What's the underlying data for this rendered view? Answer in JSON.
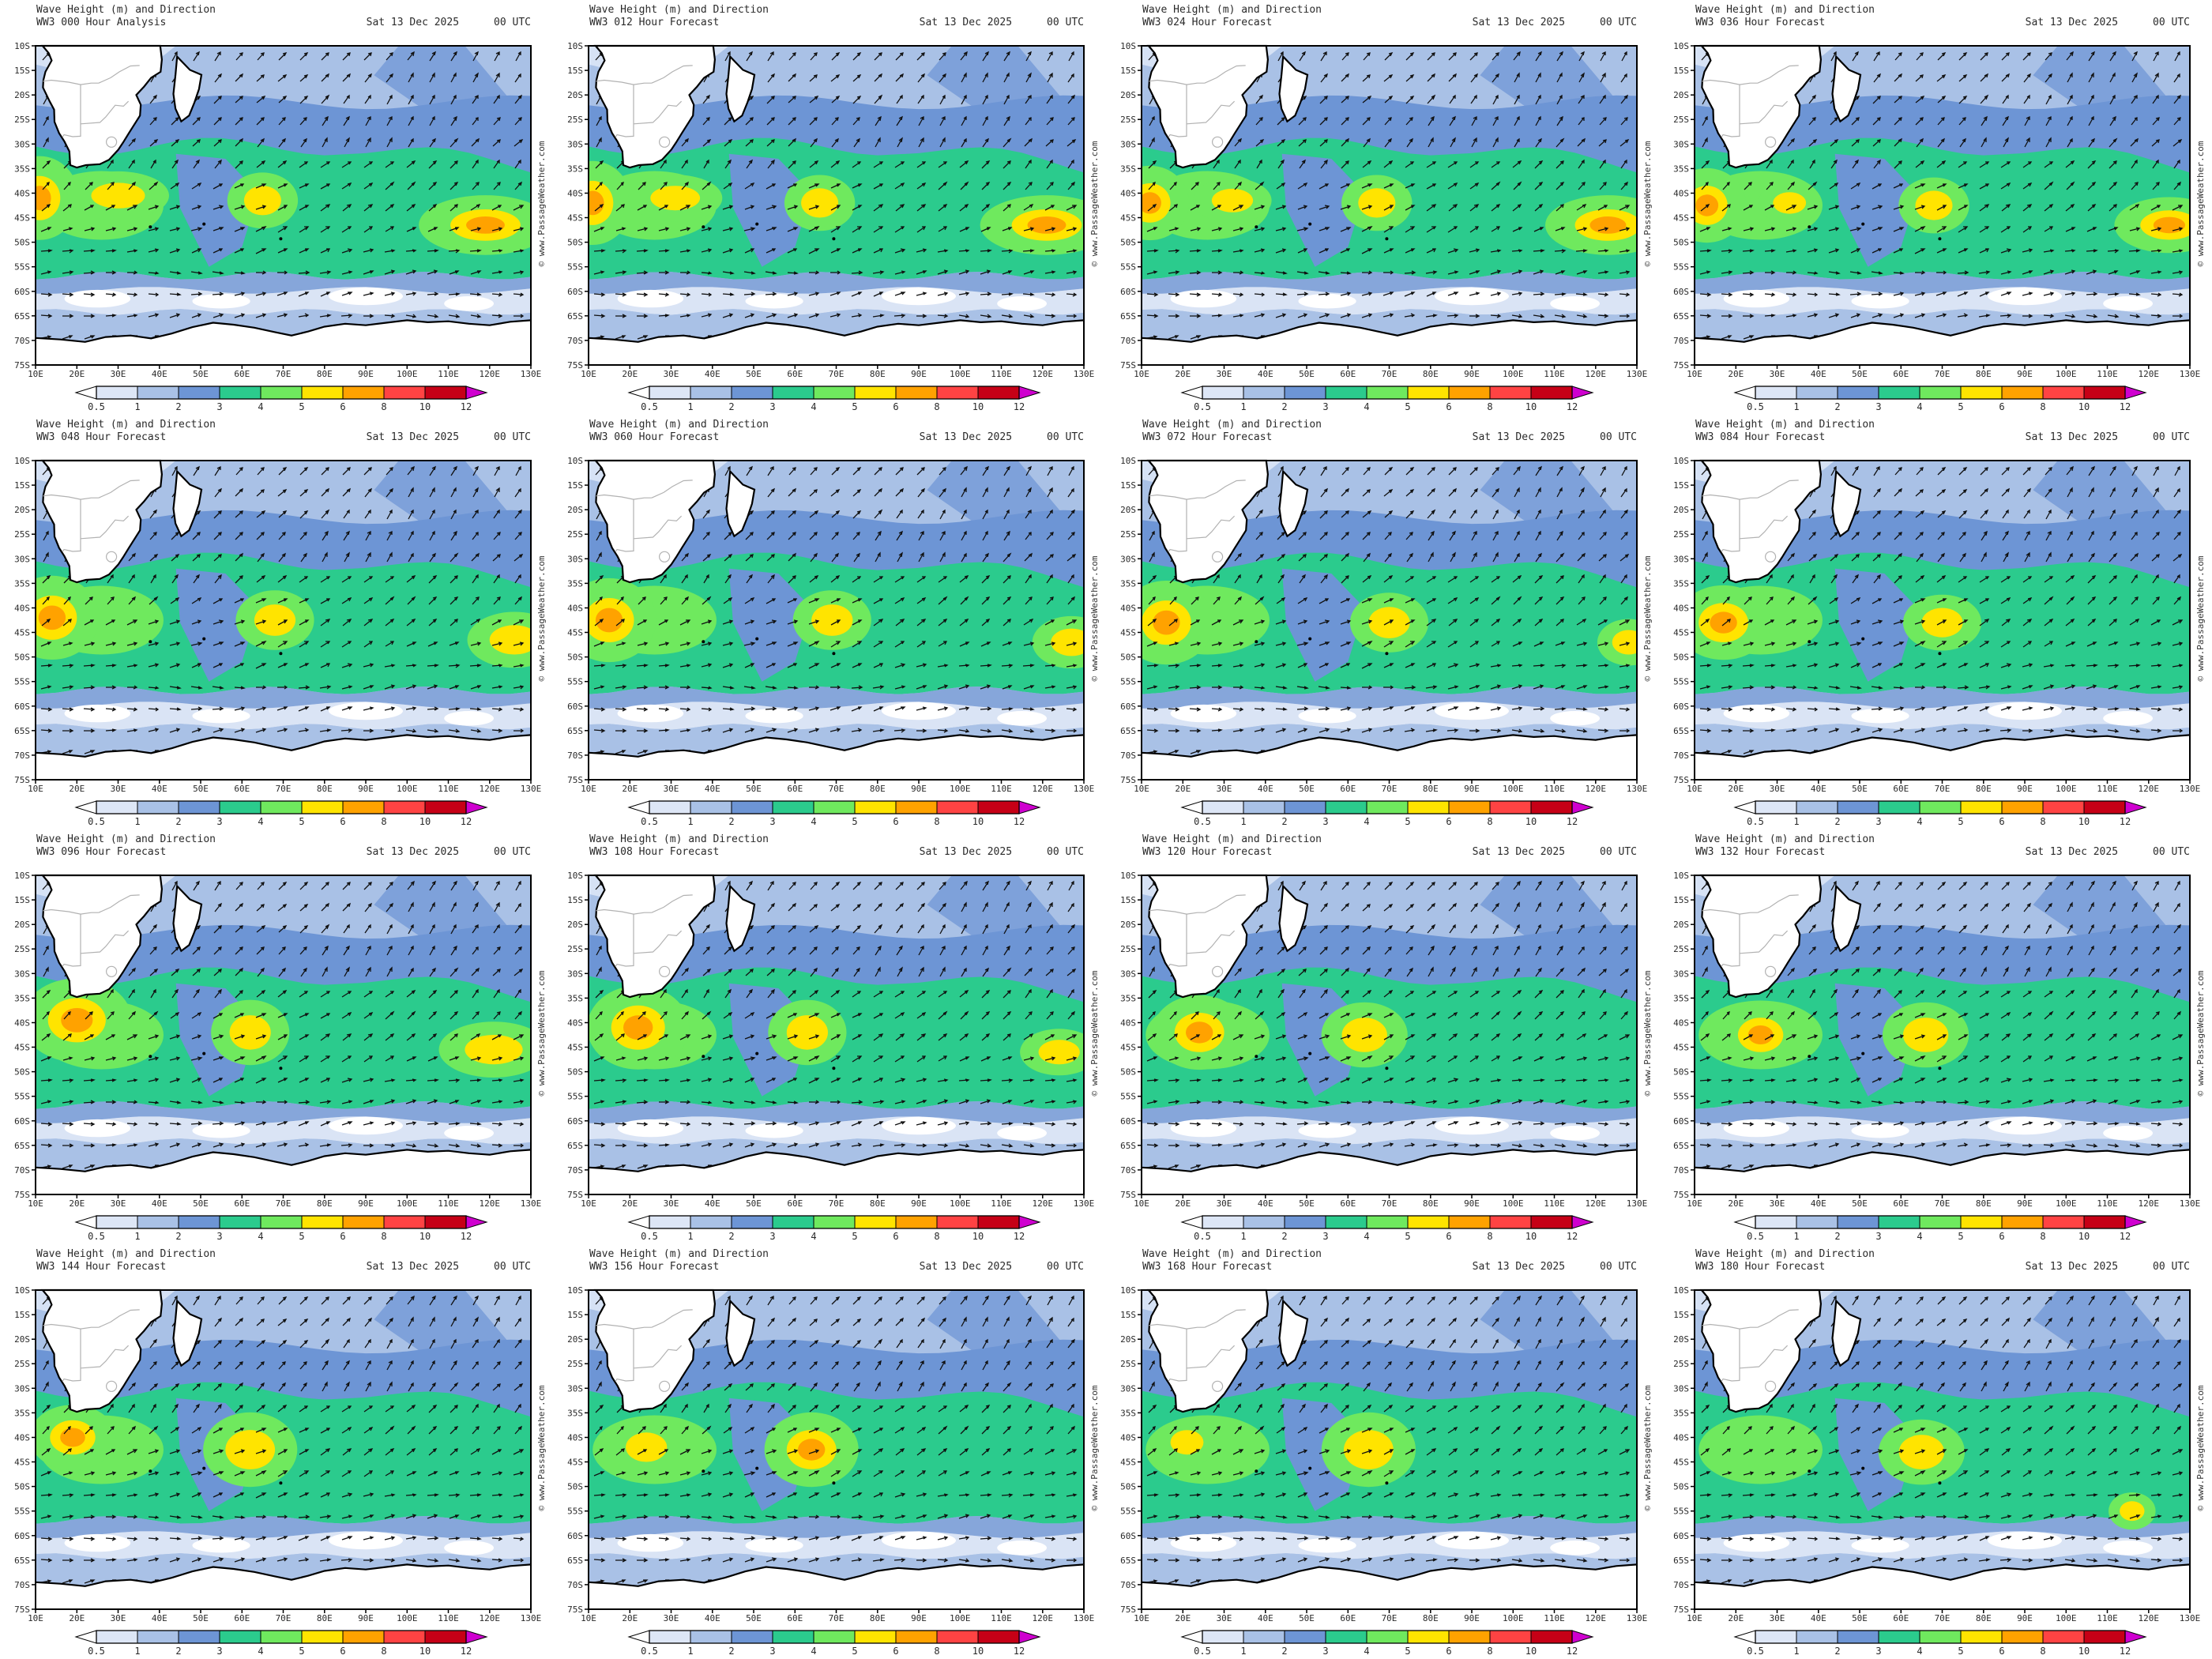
{
  "watermark": "© www.PassageWeather.com",
  "axes": {
    "lat": [
      "10S",
      "15S",
      "20S",
      "25S",
      "30S",
      "35S",
      "40S",
      "45S",
      "50S",
      "55S",
      "60S",
      "65S",
      "70S",
      "75S"
    ],
    "lon": [
      "10E",
      "20E",
      "30E",
      "40E",
      "50E",
      "60E",
      "70E",
      "80E",
      "90E",
      "100E",
      "110E",
      "120E",
      "130E"
    ]
  },
  "colorbar": {
    "labels": [
      "0.5",
      "1",
      "2",
      "3",
      "4",
      "5",
      "6",
      "8",
      "10",
      "12"
    ],
    "colors": [
      "#dde6f6",
      "#a9c1e6",
      "#6d95d5",
      "#2bcb8d",
      "#6fe95e",
      "#ffe400",
      "#ffa200",
      "#ff4343",
      "#c60016"
    ],
    "arrow_left_color": "#ffffff",
    "arrow_right_color": "#cf00cf"
  },
  "map_colors": {
    "sea_base": "#a9c1e6",
    "sea_pale": "#d6e2f5",
    "sea_medium": "#6d95d5",
    "sea_stripe": "#7ea1da",
    "sea_green": "#2bcb8d",
    "sea_bright": "#6fe95e",
    "sea_yellow": "#ffe400",
    "sea_orange": "#ffa200",
    "south_blue": "#86a6da",
    "south_pale": "#dae4f5",
    "ice_white": "#ffffff",
    "land": "#ffffff",
    "coast": "#000000",
    "border": "#b2b2b2",
    "arrow": "#101010"
  },
  "panels": [
    {
      "title": "Wave Height (m) and Direction",
      "run": "WW3 000 Hour Analysis",
      "date": "Sat 13 Dec 2025",
      "time": "00 UTC",
      "storms": [
        [
          11,
          41,
          5,
          4.5,
          "orange"
        ],
        [
          30,
          40.5,
          6.5,
          2.6,
          "yellow"
        ],
        [
          65,
          41.5,
          4.5,
          3,
          "yellow"
        ],
        [
          119,
          46.5,
          8.5,
          3.2,
          "orange"
        ]
      ]
    },
    {
      "title": "Wave Height (m) and Direction",
      "run": "WW3 012 Hour Forecast",
      "date": "Sat 13 Dec 2025",
      "time": "00 UTC",
      "storms": [
        [
          11,
          42,
          5,
          4.5,
          "orange"
        ],
        [
          31,
          41,
          6,
          2.5,
          "yellow"
        ],
        [
          66,
          42,
          4.5,
          3,
          "yellow"
        ],
        [
          121,
          46.5,
          8.5,
          3.2,
          "orange"
        ]
      ]
    },
    {
      "title": "Wave Height (m) and Direction",
      "run": "WW3 024 Hour Forecast",
      "date": "Sat 13 Dec 2025",
      "time": "00 UTC",
      "storms": [
        [
          12,
          42,
          5,
          4,
          "orange"
        ],
        [
          32,
          41.5,
          5,
          2.4,
          "yellow"
        ],
        [
          67,
          42,
          4.5,
          3,
          "yellow"
        ],
        [
          123,
          46.5,
          8,
          3.2,
          "orange"
        ]
      ]
    },
    {
      "title": "Wave Height (m) and Direction",
      "run": "WW3 036 Hour Forecast",
      "date": "Sat 13 Dec 2025",
      "time": "00 UTC",
      "storms": [
        [
          13,
          42.5,
          5,
          4,
          "orange"
        ],
        [
          33,
          42,
          4,
          2.2,
          "yellow"
        ],
        [
          68,
          42.5,
          4.5,
          3,
          "yellow"
        ],
        [
          125,
          46.5,
          7,
          3,
          "orange"
        ]
      ]
    },
    {
      "title": "Wave Height (m) and Direction",
      "run": "WW3 048 Hour Forecast",
      "date": "Sat 13 Dec 2025",
      "time": "00 UTC",
      "storms": [
        [
          14,
          42,
          6,
          4.5,
          "orange"
        ],
        [
          68,
          42.5,
          5,
          3.2,
          "yellow"
        ],
        [
          126,
          46.5,
          6,
          3,
          "yellow"
        ]
      ]
    },
    {
      "title": "Wave Height (m) and Direction",
      "run": "WW3 060 Hour Forecast",
      "date": "Sat 13 Dec 2025",
      "time": "00 UTC",
      "storms": [
        [
          15,
          42.5,
          6,
          4.5,
          "orange"
        ],
        [
          69,
          42.5,
          5,
          3.2,
          "yellow"
        ],
        [
          127,
          47,
          5,
          2.8,
          "yellow"
        ]
      ]
    },
    {
      "title": "Wave Height (m) and Direction",
      "run": "WW3 072 Hour Forecast",
      "date": "Sat 13 Dec 2025",
      "time": "00 UTC",
      "storms": [
        [
          16,
          43,
          6,
          4.5,
          "orange"
        ],
        [
          70,
          43,
          5,
          3.2,
          "yellow"
        ],
        [
          128,
          47,
          4,
          2.5,
          "yellow"
        ]
      ]
    },
    {
      "title": "Wave Height (m) and Direction",
      "run": "WW3 084 Hour Forecast",
      "date": "Sat 13 Dec 2025",
      "time": "00 UTC",
      "storms": [
        [
          17,
          43,
          6,
          4,
          "orange"
        ],
        [
          70,
          43,
          5,
          3,
          "yellow"
        ]
      ]
    },
    {
      "title": "Wave Height (m) and Direction",
      "run": "WW3 096 Hour Forecast",
      "date": "Sat 13 Dec 2025",
      "time": "00 UTC",
      "storms": [
        [
          20,
          39.5,
          7,
          4.5,
          "orange"
        ],
        [
          62,
          42,
          5,
          3.5,
          "yellow"
        ],
        [
          121,
          45.5,
          7,
          3,
          "yellow"
        ]
      ]
    },
    {
      "title": "Wave Height (m) and Direction",
      "run": "WW3 108 Hour Forecast",
      "date": "Sat 13 Dec 2025",
      "time": "00 UTC",
      "storms": [
        [
          22,
          41,
          6.5,
          4.5,
          "orange"
        ],
        [
          63,
          42,
          5,
          3.5,
          "yellow"
        ],
        [
          124,
          46,
          5,
          2.5,
          "yellow"
        ]
      ]
    },
    {
      "title": "Wave Height (m) and Direction",
      "run": "WW3 120 Hour Forecast",
      "date": "Sat 13 Dec 2025",
      "time": "00 UTC",
      "storms": [
        [
          24,
          42,
          6,
          4,
          "orange"
        ],
        [
          64,
          42.5,
          5.5,
          3.5,
          "yellow"
        ]
      ]
    },
    {
      "title": "Wave Height (m) and Direction",
      "run": "WW3 132 Hour Forecast",
      "date": "Sat 13 Dec 2025",
      "time": "00 UTC",
      "storms": [
        [
          26,
          42.5,
          5.5,
          3.5,
          "orange"
        ],
        [
          66,
          42.5,
          5.5,
          3.5,
          "yellow"
        ]
      ]
    },
    {
      "title": "Wave Height (m) and Direction",
      "run": "WW3 144 Hour Forecast",
      "date": "Sat 13 Dec 2025",
      "time": "00 UTC",
      "storms": [
        [
          19,
          40,
          5.5,
          3.5,
          "orange"
        ],
        [
          62,
          42.5,
          6,
          4,
          "yellow"
        ]
      ]
    },
    {
      "title": "Wave Height (m) and Direction",
      "run": "WW3 156 Hour Forecast",
      "date": "Sat 13 Dec 2025",
      "time": "00 UTC",
      "storms": [
        [
          24,
          42,
          5,
          3,
          "yellow"
        ],
        [
          64,
          42.5,
          6,
          4,
          "orange"
        ]
      ]
    },
    {
      "title": "Wave Height (m) and Direction",
      "run": "WW3 168 Hour Forecast",
      "date": "Sat 13 Dec 2025",
      "time": "00 UTC",
      "storms": [
        [
          21,
          41,
          4,
          2.5,
          "yellow"
        ],
        [
          65,
          42.5,
          6,
          4,
          "yellow"
        ]
      ]
    },
    {
      "title": "Wave Height (m) and Direction",
      "run": "WW3 180 Hour Forecast",
      "date": "Sat 13 Dec 2025",
      "time": "00 UTC",
      "storms": [
        [
          65,
          43,
          5.5,
          3.5,
          "yellow"
        ],
        [
          116,
          55,
          3,
          2,
          "yellow"
        ]
      ]
    }
  ]
}
